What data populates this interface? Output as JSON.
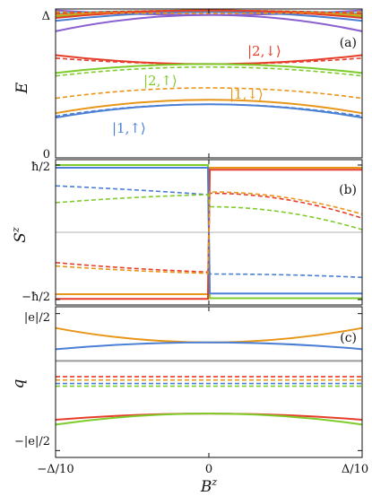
{
  "figure": {
    "x_axis": {
      "label": "B",
      "label_sup": "z",
      "tick_labels": [
        "−Δ/10",
        "0",
        "Δ/10"
      ],
      "ticks": [
        -0.1,
        0,
        0.1
      ],
      "range": [
        -0.1,
        0.1
      ]
    },
    "colors": {
      "blue": "#4a7fd4",
      "green": "#7dcc2a",
      "orange": "#e8961a",
      "red": "#e63d2a",
      "purple": "#8a5fd0",
      "cyan": "#2ec4d8",
      "gray": "#9a9a9a"
    }
  },
  "chart_data": [
    {
      "type": "line",
      "panel": "(a)",
      "ylabel": "E",
      "y_tick_labels": [
        "0",
        "Δ"
      ],
      "y_ticks": [
        0,
        1
      ],
      "ylim": [
        0,
        1
      ],
      "annotations": [
        {
          "text": "|2,↓⟩",
          "color": "red"
        },
        {
          "text": "|2,↑⟩",
          "color": "green"
        },
        {
          "text": "|1,↓⟩",
          "color": "orange"
        },
        {
          "text": "|1,↑⟩",
          "color": "blue"
        }
      ],
      "x": [
        -0.1,
        0,
        0.1
      ],
      "series": [
        {
          "color": "red",
          "dash": false,
          "values": [
            0.69,
            0.63,
            0.69
          ]
        },
        {
          "color": "red",
          "dash": true,
          "values": [
            0.67,
            0.63,
            0.67
          ]
        },
        {
          "color": "green",
          "dash": false,
          "values": [
            0.57,
            0.63,
            0.57
          ]
        },
        {
          "color": "green",
          "dash": true,
          "values": [
            0.55,
            0.61,
            0.55
          ]
        },
        {
          "color": "orange",
          "dash": false,
          "values": [
            0.3,
            0.39,
            0.3
          ]
        },
        {
          "color": "orange",
          "dash": true,
          "values": [
            0.4,
            0.47,
            0.4
          ]
        },
        {
          "color": "blue",
          "dash": false,
          "values": [
            0.27,
            0.36,
            0.27
          ]
        },
        {
          "color": "blue",
          "dash": true,
          "values": [
            0.28,
            0.36,
            0.28
          ]
        },
        {
          "color": "purple",
          "dash": false,
          "values": [
            0.85,
            0.96,
            0.85
          ]
        },
        {
          "color": "purple",
          "dash": false,
          "values": [
            0.99,
            0.96,
            0.99
          ]
        },
        {
          "color": "blue",
          "dash": false,
          "values": [
            0.92,
            0.98,
            0.92
          ]
        },
        {
          "color": "cyan",
          "dash": false,
          "values": [
            0.97,
            0.99,
            0.97
          ]
        },
        {
          "color": "green",
          "dash": false,
          "values": [
            0.95,
            0.99,
            0.95
          ]
        },
        {
          "color": "orange",
          "dash": false,
          "values": [
            0.96,
            0.99,
            0.96
          ]
        },
        {
          "color": "red",
          "dash": false,
          "values": [
            0.94,
            0.99,
            0.94
          ]
        },
        {
          "color": "orange",
          "dash": true,
          "values": [
            0.98,
            0.97,
            0.98
          ]
        },
        {
          "color": "red",
          "dash": true,
          "values": [
            0.97,
            0.99,
            0.97
          ]
        }
      ]
    },
    {
      "type": "line",
      "panel": "(b)",
      "ylabel": "S",
      "ylabel_sup": "z",
      "y_tick_labels": [
        "ħ/2",
        "−ħ/2"
      ],
      "y_ticks": [
        1,
        -1
      ],
      "ylim": [
        -1.08,
        1.08
      ],
      "zero_line": true,
      "x": [
        -0.1,
        -0.05,
        0,
        0.05,
        0.1
      ],
      "series": [
        {
          "color": "green",
          "dash": false,
          "values": [
            1.0,
            1.0,
            1.0,
            -0.98,
            -0.98
          ]
        },
        {
          "color": "orange",
          "dash": false,
          "values": [
            -0.92,
            -0.92,
            -0.92,
            0.96,
            0.96
          ]
        },
        {
          "color": "red",
          "dash": false,
          "values": [
            -0.99,
            -0.99,
            -0.99,
            0.93,
            0.93
          ]
        },
        {
          "color": "blue",
          "dash": false,
          "values": [
            0.96,
            0.96,
            0.96,
            -0.91,
            -0.91
          ]
        },
        {
          "color": "blue",
          "dash": true,
          "values": [
            0.69,
            0.64,
            0.56,
            -0.62,
            -0.67
          ]
        },
        {
          "color": "green",
          "dash": true,
          "values": [
            0.44,
            0.53,
            0.56,
            0.38,
            0.04
          ]
        },
        {
          "color": "red",
          "dash": true,
          "values": [
            -0.45,
            -0.55,
            -0.59,
            0.58,
            0.21
          ]
        },
        {
          "color": "orange",
          "dash": true,
          "values": [
            -0.5,
            -0.58,
            -0.61,
            0.6,
            0.27
          ]
        }
      ]
    },
    {
      "type": "line",
      "panel": "(c)",
      "ylabel": "q",
      "y_tick_labels": [
        "|e|/2",
        "−|e|/2"
      ],
      "y_ticks": [
        1,
        -1
      ],
      "ylim": [
        -1.1,
        1.1
      ],
      "x": [
        -0.1,
        0,
        0.1
      ],
      "series": [
        {
          "color": "orange",
          "dash": false,
          "values": [
            0.79,
            0.58,
            0.79
          ]
        },
        {
          "color": "blue",
          "dash": false,
          "values": [
            0.48,
            0.58,
            0.48
          ]
        },
        {
          "color": "gray",
          "dash": false,
          "values": [
            0.31,
            0.31,
            0.31
          ]
        },
        {
          "color": "red",
          "dash": true,
          "values": [
            0.08,
            0.08,
            0.08
          ]
        },
        {
          "color": "orange",
          "dash": true,
          "values": [
            0.03,
            0.03,
            0.03
          ]
        },
        {
          "color": "blue",
          "dash": true,
          "values": [
            -0.02,
            -0.02,
            -0.02
          ]
        },
        {
          "color": "green",
          "dash": true,
          "values": [
            -0.06,
            -0.06,
            -0.06
          ]
        },
        {
          "color": "red",
          "dash": false,
          "values": [
            -0.55,
            -0.46,
            -0.55
          ]
        },
        {
          "color": "green",
          "dash": false,
          "values": [
            -0.62,
            -0.46,
            -0.62
          ]
        }
      ]
    }
  ]
}
